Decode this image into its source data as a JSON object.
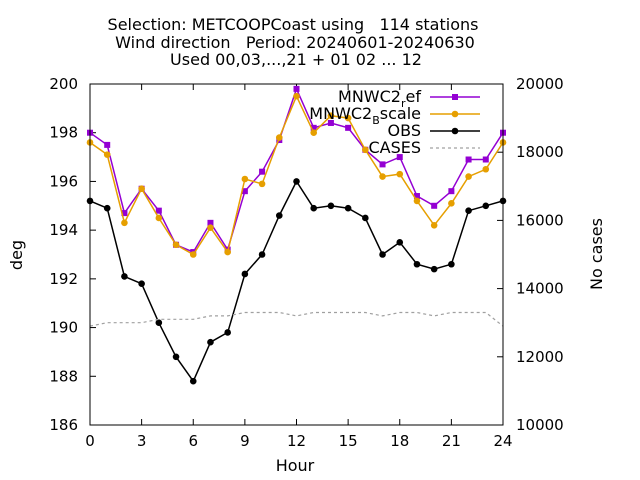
{
  "chart_data": {
    "type": "line",
    "title_lines": [
      "Selection: METCOOPCoast using   114 stations",
      "Wind direction   Period: 20240601-20240630",
      "Used 00,03,...,21 + 01 02 ... 12"
    ],
    "xlabel": "Hour",
    "ylabel": "deg",
    "y2label": "No cases",
    "xlim": [
      0,
      24
    ],
    "ylim": [
      186,
      200
    ],
    "y2lim": [
      10000,
      20000
    ],
    "xticks": [
      0,
      3,
      6,
      9,
      12,
      15,
      18,
      21,
      24
    ],
    "yticks": [
      186,
      188,
      190,
      192,
      194,
      196,
      198,
      200
    ],
    "y2ticks": [
      10000,
      12000,
      14000,
      16000,
      18000,
      20000
    ],
    "grid": false,
    "legend_position": "top-right",
    "x": [
      0,
      1,
      2,
      3,
      4,
      5,
      6,
      7,
      8,
      9,
      10,
      11,
      12,
      13,
      14,
      15,
      16,
      17,
      18,
      19,
      20,
      21,
      22,
      23,
      24
    ],
    "series": [
      {
        "name": "MNWC2_ref",
        "legend_main": "MNWC2",
        "legend_sub": "r",
        "legend_rest": "ef",
        "color": "#9400d3",
        "marker": "square",
        "axis": "y",
        "values": [
          198.0,
          197.5,
          194.7,
          195.7,
          194.8,
          193.4,
          193.1,
          194.3,
          193.2,
          195.6,
          196.4,
          197.7,
          199.8,
          198.2,
          198.4,
          198.2,
          197.3,
          196.7,
          197.0,
          195.4,
          195.0,
          195.6,
          196.9,
          196.9,
          198.0
        ]
      },
      {
        "name": "MNWC2_Bscale",
        "legend_main": "MNWC2",
        "legend_sub": "B",
        "legend_rest": "scale",
        "color": "#e69f00",
        "marker": "circle",
        "axis": "y",
        "values": [
          197.6,
          197.1,
          194.3,
          195.7,
          194.5,
          193.4,
          193.0,
          194.1,
          193.1,
          196.1,
          195.9,
          197.8,
          199.5,
          198.0,
          198.7,
          198.6,
          197.3,
          196.2,
          196.3,
          195.2,
          194.2,
          195.1,
          196.2,
          196.5,
          197.6
        ]
      },
      {
        "name": "OBS",
        "legend_main": "OBS",
        "legend_sub": "",
        "legend_rest": "",
        "color": "#000000",
        "marker": "circle",
        "axis": "y",
        "values": [
          195.2,
          194.9,
          192.1,
          191.8,
          190.2,
          188.8,
          187.8,
          189.4,
          189.8,
          192.2,
          193.0,
          194.6,
          196.0,
          194.9,
          195.0,
          194.9,
          194.5,
          193.0,
          193.5,
          192.6,
          192.4,
          192.6,
          194.8,
          195.0,
          195.2
        ]
      },
      {
        "name": "CASES",
        "legend_main": "CASES",
        "legend_sub": "",
        "legend_rest": "",
        "color": "#a0a0a0",
        "marker": "none",
        "dashed": true,
        "axis": "y2",
        "values": [
          12900,
          13000,
          13000,
          13000,
          13100,
          13100,
          13100,
          13200,
          13200,
          13300,
          13300,
          13300,
          13200,
          13300,
          13300,
          13300,
          13300,
          13200,
          13300,
          13300,
          13200,
          13300,
          13300,
          13300,
          12900
        ]
      }
    ]
  }
}
